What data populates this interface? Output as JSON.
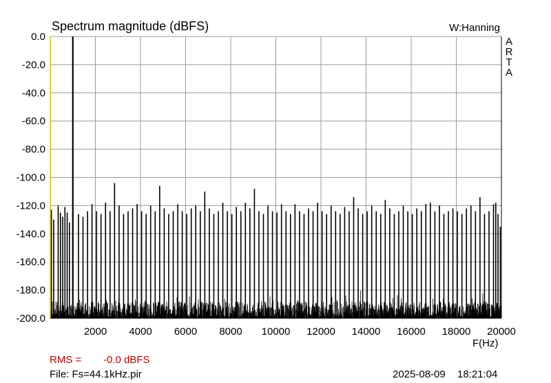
{
  "header": {
    "title": "Spectrum magnitude (dBFS)",
    "window": "W:Hanning",
    "brand": [
      "A",
      "R",
      "T",
      "A"
    ]
  },
  "footer": {
    "rms_label": "RMS =",
    "rms_value": "-0.0 dBFS",
    "file": "File: Fs=44.1kHz.pir",
    "date": "2025-08-09",
    "time": "18:21:04"
  },
  "colors": {
    "grid": "#999999",
    "trace": "#000000",
    "left_axis": "#d4c400",
    "rms_text": "#c00000"
  },
  "chart_data": {
    "type": "line",
    "title": "Spectrum magnitude (dBFS)",
    "xlabel": "F(Hz)",
    "ylabel": "",
    "xlim": [
      0,
      20000
    ],
    "ylim": [
      -200,
      0
    ],
    "xticks": [
      2000,
      4000,
      6000,
      8000,
      10000,
      12000,
      14000,
      16000,
      18000,
      20000
    ],
    "xtick_labels": [
      "2000",
      "4000",
      "6000",
      "8000",
      "10000",
      "12000",
      "14000",
      "16000",
      "18000",
      "20000"
    ],
    "yticks": [
      0,
      -20,
      -40,
      -60,
      -80,
      -100,
      -120,
      -140,
      -160,
      -180,
      -200
    ],
    "ytick_labels": [
      "0.0",
      "-20.0",
      "-40.0",
      "-60.0",
      "-80.0",
      "-100.0",
      "-120.0",
      "-140.0",
      "-160.0",
      "-180.0",
      "-200.0"
    ],
    "grid": true,
    "fundamental": {
      "freq": 1000,
      "level": 0
    },
    "noise_floor": -188,
    "spurs": [
      {
        "freq": 50,
        "level": -123
      },
      {
        "freq": 150,
        "level": -130
      },
      {
        "freq": 350,
        "level": -120
      },
      {
        "freq": 450,
        "level": -125
      },
      {
        "freq": 550,
        "level": -128
      },
      {
        "freq": 650,
        "level": -121
      },
      {
        "freq": 750,
        "level": -125
      },
      {
        "freq": 850,
        "level": -132
      },
      {
        "freq": 1250,
        "level": -126
      },
      {
        "freq": 1450,
        "level": -128
      },
      {
        "freq": 1650,
        "level": -124
      },
      {
        "freq": 1850,
        "level": -119
      },
      {
        "freq": 2050,
        "level": -124
      },
      {
        "freq": 2250,
        "level": -126
      },
      {
        "freq": 2450,
        "level": -118
      },
      {
        "freq": 2650,
        "level": -124
      },
      {
        "freq": 2850,
        "level": -104
      },
      {
        "freq": 3050,
        "level": -120
      },
      {
        "freq": 3250,
        "level": -126
      },
      {
        "freq": 3450,
        "level": -124
      },
      {
        "freq": 3650,
        "level": -122
      },
      {
        "freq": 3850,
        "level": -119
      },
      {
        "freq": 4050,
        "level": -124
      },
      {
        "freq": 4250,
        "level": -126
      },
      {
        "freq": 4450,
        "level": -120
      },
      {
        "freq": 4650,
        "level": -124
      },
      {
        "freq": 4850,
        "level": -106
      },
      {
        "freq": 5050,
        "level": -122
      },
      {
        "freq": 5250,
        "level": -126
      },
      {
        "freq": 5450,
        "level": -124
      },
      {
        "freq": 5650,
        "level": -119
      },
      {
        "freq": 5850,
        "level": -124
      },
      {
        "freq": 6050,
        "level": -126
      },
      {
        "freq": 6250,
        "level": -122
      },
      {
        "freq": 6450,
        "level": -120
      },
      {
        "freq": 6650,
        "level": -124
      },
      {
        "freq": 6850,
        "level": -110
      },
      {
        "freq": 7050,
        "level": -122
      },
      {
        "freq": 7250,
        "level": -126
      },
      {
        "freq": 7450,
        "level": -124
      },
      {
        "freq": 7650,
        "level": -118
      },
      {
        "freq": 7850,
        "level": -124
      },
      {
        "freq": 8050,
        "level": -126
      },
      {
        "freq": 8250,
        "level": -121
      },
      {
        "freq": 8450,
        "level": -124
      },
      {
        "freq": 8650,
        "level": -118
      },
      {
        "freq": 8850,
        "level": -122
      },
      {
        "freq": 9050,
        "level": -108
      },
      {
        "freq": 9250,
        "level": -124
      },
      {
        "freq": 9450,
        "level": -126
      },
      {
        "freq": 9650,
        "level": -120
      },
      {
        "freq": 9850,
        "level": -124
      },
      {
        "freq": 10050,
        "level": -125
      },
      {
        "freq": 10250,
        "level": -119
      },
      {
        "freq": 10450,
        "level": -124
      },
      {
        "freq": 10650,
        "level": -126
      },
      {
        "freq": 10850,
        "level": -119
      },
      {
        "freq": 11050,
        "level": -124
      },
      {
        "freq": 11250,
        "level": -126
      },
      {
        "freq": 11450,
        "level": -122
      },
      {
        "freq": 11650,
        "level": -124
      },
      {
        "freq": 11850,
        "level": -118
      },
      {
        "freq": 12050,
        "level": -124
      },
      {
        "freq": 12250,
        "level": -126
      },
      {
        "freq": 12450,
        "level": -120
      },
      {
        "freq": 12650,
        "level": -124
      },
      {
        "freq": 12850,
        "level": -126
      },
      {
        "freq": 13050,
        "level": -121
      },
      {
        "freq": 13250,
        "level": -124
      },
      {
        "freq": 13450,
        "level": -114
      },
      {
        "freq": 13650,
        "level": -122
      },
      {
        "freq": 13850,
        "level": -126
      },
      {
        "freq": 14050,
        "level": -124
      },
      {
        "freq": 14250,
        "level": -120
      },
      {
        "freq": 14450,
        "level": -124
      },
      {
        "freq": 14650,
        "level": -126
      },
      {
        "freq": 14850,
        "level": -116
      },
      {
        "freq": 15050,
        "level": -122
      },
      {
        "freq": 15250,
        "level": -126
      },
      {
        "freq": 15450,
        "level": -124
      },
      {
        "freq": 15650,
        "level": -120
      },
      {
        "freq": 15850,
        "level": -124
      },
      {
        "freq": 16050,
        "level": -126
      },
      {
        "freq": 16250,
        "level": -122
      },
      {
        "freq": 16450,
        "level": -124
      },
      {
        "freq": 16650,
        "level": -119
      },
      {
        "freq": 16850,
        "level": -118
      },
      {
        "freq": 17050,
        "level": -124
      },
      {
        "freq": 17250,
        "level": -120
      },
      {
        "freq": 17450,
        "level": -126
      },
      {
        "freq": 17650,
        "level": -124
      },
      {
        "freq": 17850,
        "level": -122
      },
      {
        "freq": 18050,
        "level": -124
      },
      {
        "freq": 18250,
        "level": -126
      },
      {
        "freq": 18450,
        "level": -122
      },
      {
        "freq": 18650,
        "level": -120
      },
      {
        "freq": 18850,
        "level": -124
      },
      {
        "freq": 19050,
        "level": -114
      },
      {
        "freq": 19250,
        "level": -126
      },
      {
        "freq": 19450,
        "level": -124
      },
      {
        "freq": 19650,
        "level": -119
      },
      {
        "freq": 19750,
        "level": -118
      },
      {
        "freq": 19850,
        "level": -126
      },
      {
        "freq": 19950,
        "level": -135
      }
    ]
  }
}
